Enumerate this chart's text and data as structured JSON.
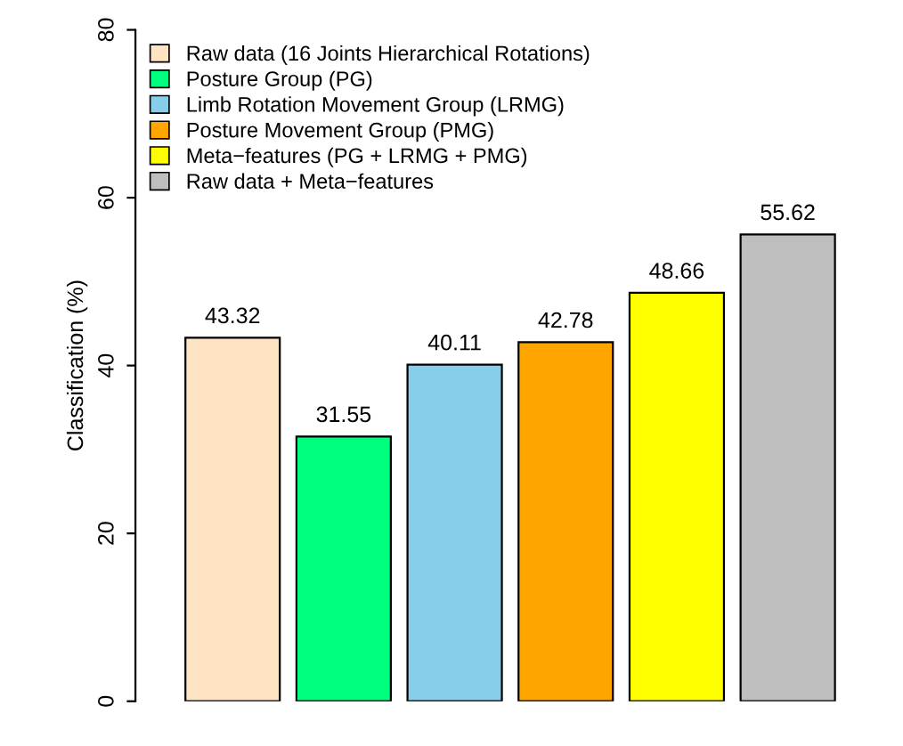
{
  "chart_data": {
    "type": "bar",
    "ylabel": "Classification (%)",
    "categories": [
      null
    ],
    "series": [
      {
        "name": "Raw data (16 Joints Hierarchical Rotations)",
        "color": "#ffe4c4",
        "values": [
          43.32
        ]
      },
      {
        "name": "Posture Group (PG)",
        "color": "#00ff7f",
        "values": [
          31.55
        ]
      },
      {
        "name": "Limb Rotation Movement Group (LRMG)",
        "color": "#87ceeb",
        "values": [
          40.11
        ]
      },
      {
        "name": "Posture Movement Group (PMG)",
        "color": "#ffa500",
        "values": [
          42.78
        ]
      },
      {
        "name": "Meta−features (PG + LRMG + PMG)",
        "color": "#ffff00",
        "values": [
          48.66
        ]
      },
      {
        "name": "Raw data + Meta−features",
        "color": "#bebebe",
        "values": [
          55.62
        ]
      }
    ],
    "ylim": [
      0,
      80
    ],
    "yticks": [
      0,
      20,
      40,
      60,
      80
    ],
    "data_labels": true,
    "legend": "top left",
    "grid": false,
    "tick_labels": "y"
  }
}
